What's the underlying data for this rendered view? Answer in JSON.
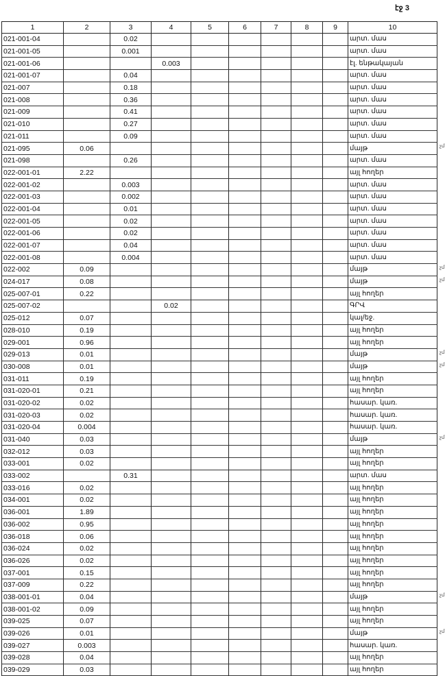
{
  "page_label": "էջ 3",
  "columns": [
    "1",
    "2",
    "3",
    "4",
    "5",
    "6",
    "7",
    "8",
    "9",
    "10"
  ],
  "rows": [
    {
      "code": "021-001-04",
      "c2": "",
      "c3": "0.02",
      "c4": "",
      "desc": "արտ. մաս",
      "note": ""
    },
    {
      "code": "021-001-05",
      "c2": "",
      "c3": "0.001",
      "c4": "",
      "desc": "արտ. մաս",
      "note": ""
    },
    {
      "code": "021-001-06",
      "c2": "",
      "c3": "",
      "c4": "0.003",
      "desc": "էլ. ենթակայան",
      "note": ""
    },
    {
      "code": "021-001-07",
      "c2": "",
      "c3": "0.04",
      "c4": "",
      "desc": "արտ. մաս",
      "note": ""
    },
    {
      "code": "021-007",
      "c2": "",
      "c3": "0.18",
      "c4": "",
      "desc": "արտ. մաս",
      "note": ""
    },
    {
      "code": "021-008",
      "c2": "",
      "c3": "0.36",
      "c4": "",
      "desc": "արտ. մաս",
      "note": ""
    },
    {
      "code": "021-009",
      "c2": "",
      "c3": "0.41",
      "c4": "",
      "desc": "արտ. մաս",
      "note": ""
    },
    {
      "code": "021-010",
      "c2": "",
      "c3": "0.27",
      "c4": "",
      "desc": "արտ. մաս",
      "note": ""
    },
    {
      "code": "021-011",
      "c2": "",
      "c3": "0.09",
      "c4": "",
      "desc": "արտ. մաս",
      "note": ""
    },
    {
      "code": "021-095",
      "c2": "0.06",
      "c3": "",
      "c4": "",
      "desc": "մայթ",
      "note": "չմ"
    },
    {
      "code": "021-098",
      "c2": "",
      "c3": "0.26",
      "c4": "",
      "desc": "արտ. մաս",
      "note": ""
    },
    {
      "code": "022-001-01",
      "c2": "2.22",
      "c3": "",
      "c4": "",
      "desc": "այլ հողեր",
      "note": ""
    },
    {
      "code": "022-001-02",
      "c2": "",
      "c3": "0.003",
      "c4": "",
      "desc": "արտ. մաս",
      "note": ""
    },
    {
      "code": "022-001-03",
      "c2": "",
      "c3": "0.002",
      "c4": "",
      "desc": "արտ. մաս",
      "note": ""
    },
    {
      "code": "022-001-04",
      "c2": "",
      "c3": "0.01",
      "c4": "",
      "desc": "արտ. մաս",
      "note": ""
    },
    {
      "code": "022-001-05",
      "c2": "",
      "c3": "0.02",
      "c4": "",
      "desc": "արտ. մաս",
      "note": ""
    },
    {
      "code": "022-001-06",
      "c2": "",
      "c3": "0.02",
      "c4": "",
      "desc": "արտ. մաս",
      "note": ""
    },
    {
      "code": "022-001-07",
      "c2": "",
      "c3": "0.04",
      "c4": "",
      "desc": "արտ. մաս",
      "note": ""
    },
    {
      "code": "022-001-08",
      "c2": "",
      "c3": "0.004",
      "c4": "",
      "desc": "արտ. մաս",
      "note": ""
    },
    {
      "code": "022-002",
      "c2": "0.09",
      "c3": "",
      "c4": "",
      "desc": "մայթ",
      "note": "չմ"
    },
    {
      "code": "024-017",
      "c2": "0.08",
      "c3": "",
      "c4": "",
      "desc": "մայթ",
      "note": "չմ"
    },
    {
      "code": "025-007-01",
      "c2": "0.22",
      "c3": "",
      "c4": "",
      "desc": "այլ հողեր",
      "note": ""
    },
    {
      "code": "025-007-02",
      "c2": "",
      "c3": "",
      "c4": "0.02",
      "desc": "ԳՐՎ",
      "note": ""
    },
    {
      "code": "025-012",
      "c2": "0.07",
      "c3": "",
      "c4": "",
      "desc": "կալ/եջ.",
      "note": ""
    },
    {
      "code": "028-010",
      "c2": "0.19",
      "c3": "",
      "c4": "",
      "desc": "այլ հողեր",
      "note": ""
    },
    {
      "code": "029-001",
      "c2": "0.96",
      "c3": "",
      "c4": "",
      "desc": "այլ հողեր",
      "note": ""
    },
    {
      "code": "029-013",
      "c2": "0.01",
      "c3": "",
      "c4": "",
      "desc": "մայթ",
      "note": "չմ"
    },
    {
      "code": "030-008",
      "c2": "0.01",
      "c3": "",
      "c4": "",
      "desc": "մայթ",
      "note": "չմ"
    },
    {
      "code": "031-011",
      "c2": "0.19",
      "c3": "",
      "c4": "",
      "desc": "այլ հողեր",
      "note": ""
    },
    {
      "code": "031-020-01",
      "c2": "0.21",
      "c3": "",
      "c4": "",
      "desc": "այլ հողեր",
      "note": ""
    },
    {
      "code": "031-020-02",
      "c2": "0.02",
      "c3": "",
      "c4": "",
      "desc": "հասար. կառ.",
      "note": ""
    },
    {
      "code": "031-020-03",
      "c2": "0.02",
      "c3": "",
      "c4": "",
      "desc": "հասար. կառ.",
      "note": ""
    },
    {
      "code": "031-020-04",
      "c2": "0.004",
      "c3": "",
      "c4": "",
      "desc": "հասար. կառ.",
      "note": ""
    },
    {
      "code": "031-040",
      "c2": "0.03",
      "c3": "",
      "c4": "",
      "desc": "մայթ",
      "note": "չմ"
    },
    {
      "code": "032-012",
      "c2": "0.03",
      "c3": "",
      "c4": "",
      "desc": "այլ հողեր",
      "note": ""
    },
    {
      "code": "033-001",
      "c2": "0.02",
      "c3": "",
      "c4": "",
      "desc": "այլ հողեր",
      "note": ""
    },
    {
      "code": "033-002",
      "c2": "",
      "c3": "0.31",
      "c4": "",
      "desc": "արտ. մաս",
      "note": ""
    },
    {
      "code": "033-016",
      "c2": "0.02",
      "c3": "",
      "c4": "",
      "desc": "այլ հողեր",
      "note": ""
    },
    {
      "code": "034-001",
      "c2": "0.02",
      "c3": "",
      "c4": "",
      "desc": "այլ հողեր",
      "note": ""
    },
    {
      "code": "036-001",
      "c2": "1.89",
      "c3": "",
      "c4": "",
      "desc": "այլ հողեր",
      "note": ""
    },
    {
      "code": "036-002",
      "c2": "0.95",
      "c3": "",
      "c4": "",
      "desc": "այլ հողեր",
      "note": ""
    },
    {
      "code": "036-018",
      "c2": "0.06",
      "c3": "",
      "c4": "",
      "desc": "այլ հողեր",
      "note": ""
    },
    {
      "code": "036-024",
      "c2": "0.02",
      "c3": "",
      "c4": "",
      "desc": "այլ հողեր",
      "note": ""
    },
    {
      "code": "036-026",
      "c2": "0.02",
      "c3": "",
      "c4": "",
      "desc": "այլ հողեր",
      "note": ""
    },
    {
      "code": "037-001",
      "c2": "0.15",
      "c3": "",
      "c4": "",
      "desc": "այլ հողեր",
      "note": ""
    },
    {
      "code": "037-009",
      "c2": "0.22",
      "c3": "",
      "c4": "",
      "desc": "այլ հողեր",
      "note": ""
    },
    {
      "code": "038-001-01",
      "c2": "0.04",
      "c3": "",
      "c4": "",
      "desc": "մայթ",
      "note": "չմ"
    },
    {
      "code": "038-001-02",
      "c2": "0.09",
      "c3": "",
      "c4": "",
      "desc": "այլ հողեր",
      "note": ""
    },
    {
      "code": "039-025",
      "c2": "0.07",
      "c3": "",
      "c4": "",
      "desc": "այլ հողեր",
      "note": ""
    },
    {
      "code": "039-026",
      "c2": "0.01",
      "c3": "",
      "c4": "",
      "desc": "մայթ",
      "note": "չմ"
    },
    {
      "code": "039-027",
      "c2": "0.003",
      "c3": "",
      "c4": "",
      "desc": "հասար. կառ.",
      "note": ""
    },
    {
      "code": "039-028",
      "c2": "0.04",
      "c3": "",
      "c4": "",
      "desc": "այլ հողեր",
      "note": ""
    },
    {
      "code": "039-029",
      "c2": "0.03",
      "c3": "",
      "c4": "",
      "desc": "այլ հողեր",
      "note": ""
    }
  ]
}
